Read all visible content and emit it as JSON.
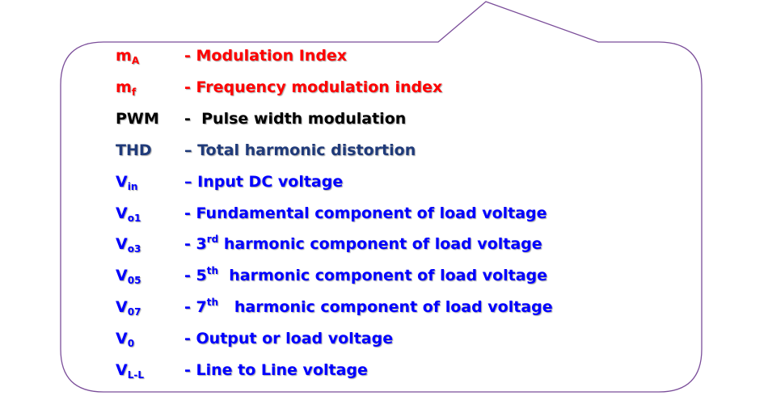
{
  "colors": {
    "border": "#7b4e9a",
    "red": "#ff0000",
    "black": "#000000",
    "navy": "#1f3a7a",
    "blue": "#0000ff"
  },
  "rows": [
    {
      "sym_main": "m",
      "sym_sub": "A",
      "dash": "- ",
      "desc_pre": "Modulation Index",
      "sup": "",
      "desc_post": "",
      "color": "red"
    },
    {
      "sym_main": "m",
      "sym_sub": "f",
      "dash": "- ",
      "desc_pre": "Frequency modulation index",
      "sup": "",
      "desc_post": "",
      "color": "red"
    },
    {
      "sym_main": "PWM",
      "sym_sub": "",
      "dash": "-  ",
      "desc_pre": "Pulse width modulation",
      "sup": "",
      "desc_post": "",
      "color": "black"
    },
    {
      "sym_main": "THD",
      "sym_sub": "",
      "dash": "– ",
      "desc_pre": "Total harmonic distortion",
      "sup": "",
      "desc_post": "",
      "color": "navy"
    },
    {
      "sym_main": "V",
      "sym_sub": "in",
      "dash": "– ",
      "desc_pre": "Input DC voltage",
      "sup": "",
      "desc_post": "",
      "color": "blue"
    },
    {
      "sym_main": "V",
      "sym_sub": "o1",
      "dash": "- ",
      "desc_pre": "Fundamental component of load voltage",
      "sup": "",
      "desc_post": "",
      "color": "blue"
    },
    {
      "sym_main": "V",
      "sym_sub": "o3",
      "dash": "- ",
      "desc_pre": "3",
      "sup": "rd",
      "desc_post": " harmonic component of load voltage",
      "color": "blue"
    },
    {
      "sym_main": "V",
      "sym_sub": "05",
      "dash": "- ",
      "desc_pre": "5",
      "sup": "th",
      "desc_post": "  harmonic component of load voltage",
      "color": "blue"
    },
    {
      "sym_main": "V",
      "sym_sub": "07",
      "dash": "- ",
      "desc_pre": "7",
      "sup": "th",
      "desc_post": "   harmonic component of load voltage",
      "color": "blue"
    },
    {
      "sym_main": "V",
      "sym_sub": "0",
      "dash": "- ",
      "desc_pre": "Output or load voltage",
      "sup": "",
      "desc_post": "",
      "color": "blue"
    },
    {
      "sym_main": "V",
      "sym_sub": "L-L",
      "dash": "- ",
      "desc_pre": "Line to Line voltage",
      "sup": "",
      "desc_post": "",
      "color": "blue"
    }
  ]
}
